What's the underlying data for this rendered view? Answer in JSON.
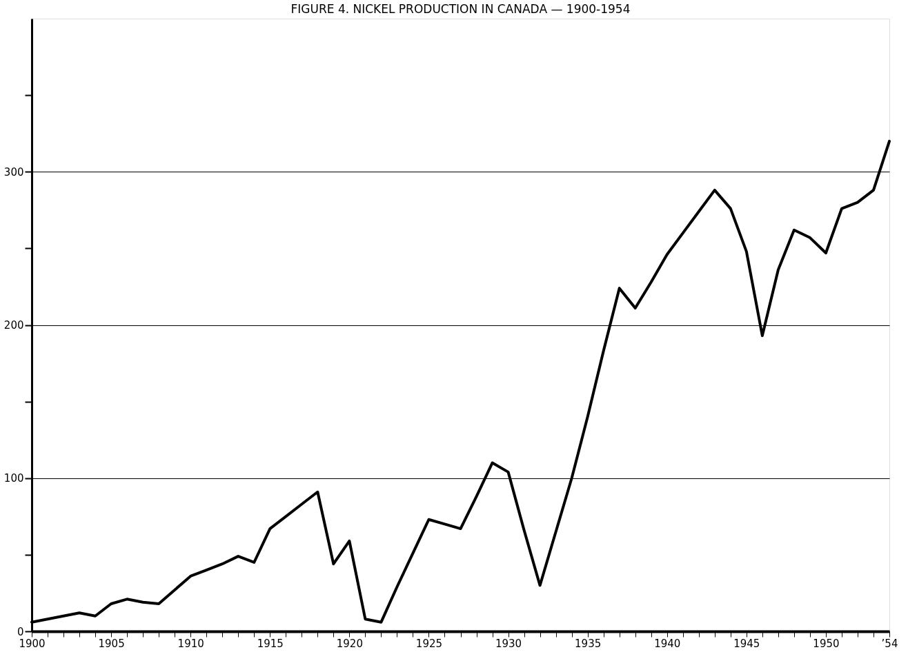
{
  "chart_data": {
    "type": "line",
    "title": "FIGURE 4.  NICKEL PRODUCTION IN CANADA — 1900-1954",
    "x": [
      1900,
      1901,
      1902,
      1903,
      1904,
      1905,
      1906,
      1907,
      1908,
      1909,
      1910,
      1911,
      1912,
      1913,
      1914,
      1915,
      1916,
      1917,
      1918,
      1919,
      1920,
      1921,
      1922,
      1923,
      1924,
      1925,
      1926,
      1927,
      1928,
      1929,
      1930,
      1931,
      1932,
      1933,
      1934,
      1935,
      1936,
      1937,
      1938,
      1939,
      1940,
      1941,
      1942,
      1943,
      1944,
      1945,
      1946,
      1947,
      1948,
      1949,
      1950,
      1951,
      1952,
      1953,
      1954
    ],
    "series": [
      {
        "color": "#000000",
        "values": [
          6,
          8,
          10,
          12,
          10,
          18,
          21,
          19,
          18,
          27,
          36,
          40,
          44,
          49,
          45,
          67,
          75,
          83,
          91,
          44,
          59,
          8,
          6,
          29,
          51,
          73,
          70,
          67,
          88,
          110,
          104,
          66,
          30,
          65,
          100,
          140,
          183,
          224,
          211,
          228,
          246,
          260,
          274,
          288,
          276,
          248,
          193,
          236,
          262,
          257,
          247,
          276,
          280,
          288,
          320
        ]
      }
    ],
    "xlim": [
      1900,
      1954
    ],
    "xticks": [
      1900,
      {
        "value": 1901,
        "label": null
      },
      {
        "value": 1902,
        "label": null
      },
      {
        "value": 1903,
        "label": null
      },
      {
        "value": 1904,
        "label": null
      },
      1905,
      {
        "value": 1906,
        "label": null
      },
      {
        "value": 1907,
        "label": null
      },
      {
        "value": 1908,
        "label": null
      },
      {
        "value": 1909,
        "label": null
      },
      1910,
      {
        "value": 1911,
        "label": null
      },
      {
        "value": 1912,
        "label": null
      },
      {
        "value": 1913,
        "label": null
      },
      {
        "value": 1914,
        "label": null
      },
      1915,
      {
        "value": 1916,
        "label": null
      },
      {
        "value": 1917,
        "label": null
      },
      {
        "value": 1918,
        "label": null
      },
      {
        "value": 1919,
        "label": null
      },
      1920,
      {
        "value": 1921,
        "label": null
      },
      {
        "value": 1922,
        "label": null
      },
      {
        "value": 1923,
        "label": null
      },
      {
        "value": 1924,
        "label": null
      },
      1925,
      {
        "value": 1926,
        "label": null
      },
      {
        "value": 1927,
        "label": null
      },
      {
        "value": 1928,
        "label": null
      },
      {
        "value": 1929,
        "label": null
      },
      1930,
      {
        "value": 1931,
        "label": null
      },
      {
        "value": 1932,
        "label": null
      },
      {
        "value": 1933,
        "label": null
      },
      {
        "value": 1934,
        "label": null
      },
      1935,
      {
        "value": 1936,
        "label": null
      },
      {
        "value": 1937,
        "label": null
      },
      {
        "value": 1938,
        "label": null
      },
      {
        "value": 1939,
        "label": null
      },
      1940,
      {
        "value": 1941,
        "label": null
      },
      {
        "value": 1942,
        "label": null
      },
      {
        "value": 1943,
        "label": null
      },
      {
        "value": 1944,
        "label": null
      },
      1945,
      {
        "value": 1946,
        "label": null
      },
      {
        "value": 1947,
        "label": null
      },
      {
        "value": 1948,
        "label": null
      },
      {
        "value": 1949,
        "label": null
      },
      1950,
      {
        "value": 1951,
        "label": null
      },
      {
        "value": 1952,
        "label": null
      },
      {
        "value": 1953,
        "label": null
      },
      {
        "value": 1954,
        "label": "’54"
      }
    ],
    "ylim": [
      0,
      400
    ],
    "yticks": [
      0,
      {
        "value": 50,
        "label": null
      },
      100,
      {
        "value": 150,
        "label": null
      },
      200,
      {
        "value": 250,
        "label": null
      },
      300,
      {
        "value": 350,
        "label": null
      }
    ],
    "grid": "y",
    "marker": "none",
    "line_style": "solid"
  }
}
